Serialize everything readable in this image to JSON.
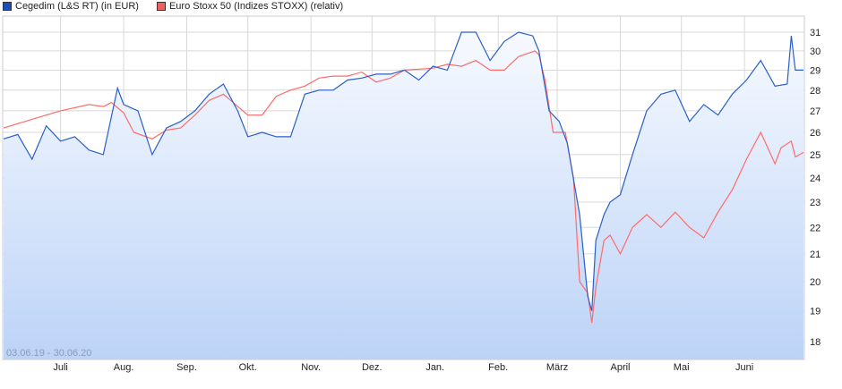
{
  "chart_data": {
    "type": "line",
    "date_range_label": "03.06.19 - 30.06.20",
    "y_scale": "log",
    "ylim": [
      17.6,
      31.8
    ],
    "y_ticks": [
      18,
      19,
      20,
      21,
      22,
      23,
      24,
      25,
      26,
      27,
      28,
      29,
      30,
      31
    ],
    "x_range": [
      "2019-06-03",
      "2020-06-30"
    ],
    "x_ticks": [
      {
        "date": "2019-07-01",
        "label": "Juli"
      },
      {
        "date": "2019-08-01",
        "label": "Aug."
      },
      {
        "date": "2019-09-01",
        "label": "Sep."
      },
      {
        "date": "2019-10-01",
        "label": "Okt."
      },
      {
        "date": "2019-11-01",
        "label": "Nov."
      },
      {
        "date": "2019-12-01",
        "label": "Dez."
      },
      {
        "date": "2020-01-01",
        "label": "Jan."
      },
      {
        "date": "2020-02-01",
        "label": "Feb."
      },
      {
        "date": "2020-03-01",
        "label": "März"
      },
      {
        "date": "2020-04-01",
        "label": "April"
      },
      {
        "date": "2020-05-01",
        "label": "Mai"
      },
      {
        "date": "2020-06-01",
        "label": "Juni"
      }
    ],
    "grid": true,
    "legend_position": "top-left",
    "series": [
      {
        "name": "Cegedim (L&S RT) (in EUR)",
        "color": "#2a5fc8",
        "legend_color": "#1c4fb8",
        "fill": true,
        "points": [
          [
            "2019-06-03",
            25.7
          ],
          [
            "2019-06-10",
            25.9
          ],
          [
            "2019-06-17",
            24.8
          ],
          [
            "2019-06-24",
            26.3
          ],
          [
            "2019-07-01",
            25.6
          ],
          [
            "2019-07-08",
            25.8
          ],
          [
            "2019-07-15",
            25.2
          ],
          [
            "2019-07-22",
            25.0
          ],
          [
            "2019-07-29",
            28.1
          ],
          [
            "2019-08-01",
            27.3
          ],
          [
            "2019-08-08",
            27.0
          ],
          [
            "2019-08-15",
            25.0
          ],
          [
            "2019-08-22",
            26.2
          ],
          [
            "2019-08-29",
            26.5
          ],
          [
            "2019-09-05",
            27.0
          ],
          [
            "2019-09-12",
            27.8
          ],
          [
            "2019-09-19",
            28.3
          ],
          [
            "2019-09-26",
            27.0
          ],
          [
            "2019-10-01",
            25.8
          ],
          [
            "2019-10-08",
            26.0
          ],
          [
            "2019-10-15",
            25.8
          ],
          [
            "2019-10-22",
            25.8
          ],
          [
            "2019-10-29",
            27.8
          ],
          [
            "2019-11-05",
            28.0
          ],
          [
            "2019-11-12",
            28.0
          ],
          [
            "2019-11-19",
            28.5
          ],
          [
            "2019-11-26",
            28.6
          ],
          [
            "2019-12-03",
            28.8
          ],
          [
            "2019-12-10",
            28.8
          ],
          [
            "2019-12-17",
            29.0
          ],
          [
            "2019-12-24",
            28.5
          ],
          [
            "2019-12-31",
            29.2
          ],
          [
            "2020-01-07",
            29.0
          ],
          [
            "2020-01-14",
            31.0
          ],
          [
            "2020-01-21",
            31.0
          ],
          [
            "2020-01-28",
            29.5
          ],
          [
            "2020-02-04",
            30.5
          ],
          [
            "2020-02-11",
            31.0
          ],
          [
            "2020-02-18",
            30.8
          ],
          [
            "2020-02-21",
            30.0
          ],
          [
            "2020-02-26",
            27.0
          ],
          [
            "2020-03-02",
            26.5
          ],
          [
            "2020-03-06",
            25.5
          ],
          [
            "2020-03-12",
            22.5
          ],
          [
            "2020-03-16",
            19.5
          ],
          [
            "2020-03-18",
            19.0
          ],
          [
            "2020-03-20",
            21.5
          ],
          [
            "2020-03-24",
            22.5
          ],
          [
            "2020-03-27",
            23.0
          ],
          [
            "2020-04-01",
            23.3
          ],
          [
            "2020-04-07",
            25.0
          ],
          [
            "2020-04-14",
            27.0
          ],
          [
            "2020-04-21",
            27.8
          ],
          [
            "2020-04-28",
            28.0
          ],
          [
            "2020-05-05",
            26.5
          ],
          [
            "2020-05-12",
            27.3
          ],
          [
            "2020-05-19",
            26.8
          ],
          [
            "2020-05-26",
            27.8
          ],
          [
            "2020-06-02",
            28.5
          ],
          [
            "2020-06-09",
            29.5
          ],
          [
            "2020-06-16",
            28.2
          ],
          [
            "2020-06-22",
            28.3
          ],
          [
            "2020-06-24",
            30.8
          ],
          [
            "2020-06-26",
            29.0
          ],
          [
            "2020-06-30",
            29.0
          ]
        ]
      },
      {
        "name": "Euro Stoxx 50 (Indizes STOXX) (relativ)",
        "color": "#ff6b6b",
        "legend_color": "#f06060",
        "fill": false,
        "points": [
          [
            "2019-06-03",
            26.2
          ],
          [
            "2019-06-17",
            26.6
          ],
          [
            "2019-07-01",
            27.0
          ],
          [
            "2019-07-15",
            27.3
          ],
          [
            "2019-07-22",
            27.2
          ],
          [
            "2019-07-26",
            27.4
          ],
          [
            "2019-08-01",
            26.9
          ],
          [
            "2019-08-06",
            26.0
          ],
          [
            "2019-08-15",
            25.7
          ],
          [
            "2019-08-22",
            26.1
          ],
          [
            "2019-08-29",
            26.2
          ],
          [
            "2019-09-05",
            26.8
          ],
          [
            "2019-09-12",
            27.5
          ],
          [
            "2019-09-19",
            27.8
          ],
          [
            "2019-10-01",
            26.8
          ],
          [
            "2019-10-08",
            26.8
          ],
          [
            "2019-10-15",
            27.7
          ],
          [
            "2019-10-22",
            28.0
          ],
          [
            "2019-10-29",
            28.2
          ],
          [
            "2019-11-05",
            28.6
          ],
          [
            "2019-11-12",
            28.7
          ],
          [
            "2019-11-19",
            28.7
          ],
          [
            "2019-11-26",
            28.9
          ],
          [
            "2019-12-03",
            28.4
          ],
          [
            "2019-12-10",
            28.6
          ],
          [
            "2019-12-17",
            29.0
          ],
          [
            "2019-12-31",
            29.1
          ],
          [
            "2020-01-07",
            29.3
          ],
          [
            "2020-01-14",
            29.2
          ],
          [
            "2020-01-21",
            29.5
          ],
          [
            "2020-01-28",
            29.0
          ],
          [
            "2020-02-04",
            29.0
          ],
          [
            "2020-02-11",
            29.7
          ],
          [
            "2020-02-19",
            30.0
          ],
          [
            "2020-02-21",
            29.8
          ],
          [
            "2020-02-24",
            28.5
          ],
          [
            "2020-02-28",
            26.0
          ],
          [
            "2020-03-05",
            26.0
          ],
          [
            "2020-03-09",
            24.0
          ],
          [
            "2020-03-12",
            20.0
          ],
          [
            "2020-03-16",
            19.6
          ],
          [
            "2020-03-18",
            18.6
          ],
          [
            "2020-03-20",
            19.8
          ],
          [
            "2020-03-24",
            21.5
          ],
          [
            "2020-03-27",
            21.7
          ],
          [
            "2020-04-01",
            21.0
          ],
          [
            "2020-04-07",
            22.0
          ],
          [
            "2020-04-14",
            22.5
          ],
          [
            "2020-04-21",
            22.0
          ],
          [
            "2020-04-28",
            22.6
          ],
          [
            "2020-05-05",
            22.0
          ],
          [
            "2020-05-12",
            21.6
          ],
          [
            "2020-05-19",
            22.6
          ],
          [
            "2020-05-26",
            23.5
          ],
          [
            "2020-06-02",
            24.8
          ],
          [
            "2020-06-09",
            26.0
          ],
          [
            "2020-06-16",
            24.6
          ],
          [
            "2020-06-19",
            25.3
          ],
          [
            "2020-06-24",
            25.6
          ],
          [
            "2020-06-26",
            24.9
          ],
          [
            "2020-06-30",
            25.1
          ]
        ]
      }
    ]
  }
}
